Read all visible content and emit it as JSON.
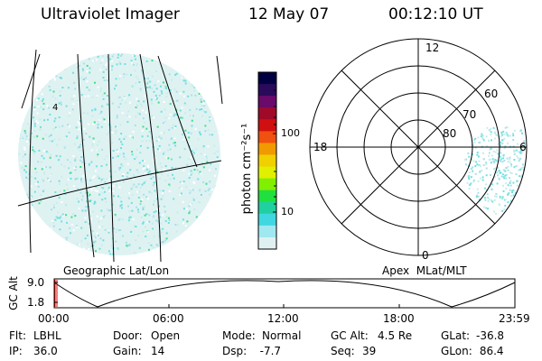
{
  "header": {
    "title": "Ultraviolet Imager",
    "date": "12 May 07",
    "time": "00:12:10 UT"
  },
  "left_panel": {
    "label": "Geographic Lat/Lon",
    "corner_mark": "4"
  },
  "colorbar": {
    "unit_label": "photon cm⁻²s⁻¹",
    "ticks": [
      "100",
      "10"
    ],
    "colors": [
      "#000040",
      "#2a0a5a",
      "#6a0a6a",
      "#a00a28",
      "#d01010",
      "#f05010",
      "#f09a00",
      "#f0d000",
      "#e0f000",
      "#80f000",
      "#20e040",
      "#20d0a0",
      "#40d8e0",
      "#a0e8f0",
      "#e0f0f0"
    ]
  },
  "polar_panel": {
    "label": "Apex  MLat/MLT",
    "mlt_labels": {
      "top": "12",
      "left": "18",
      "right": "6",
      "bottom": "0"
    },
    "lat_labels": [
      "60",
      "70",
      "80"
    ]
  },
  "altitude_plot": {
    "ylabel": "GC Alt",
    "yticks": [
      "9.0",
      "1.8"
    ],
    "xticks": [
      "00:00",
      "06:00",
      "12:00",
      "18:00",
      "23:59"
    ]
  },
  "info": {
    "row1": [
      {
        "key": "Flt:",
        "value": "LBHL"
      },
      {
        "key": "Door:",
        "value": "Open"
      },
      {
        "key": "Mode:",
        "value": "Normal"
      },
      {
        "key": "GC Alt:",
        "value": "4.5 Re"
      },
      {
        "key": "GLat:",
        "value": "-36.8"
      }
    ],
    "row2": [
      {
        "key": "IP:",
        "value": "36.0"
      },
      {
        "key": "Gain:",
        "value": "14"
      },
      {
        "key": "Dsp:",
        "value": "  -7.7"
      },
      {
        "key": "Seq:",
        "value": "39"
      },
      {
        "key": "GLon:",
        "value": " 86.4"
      }
    ]
  },
  "accent_colors": {
    "noise_light": "#c8ecec",
    "noise_mid": "#70e0e0",
    "noise_green": "#40e080",
    "cursor": "#e00000"
  }
}
